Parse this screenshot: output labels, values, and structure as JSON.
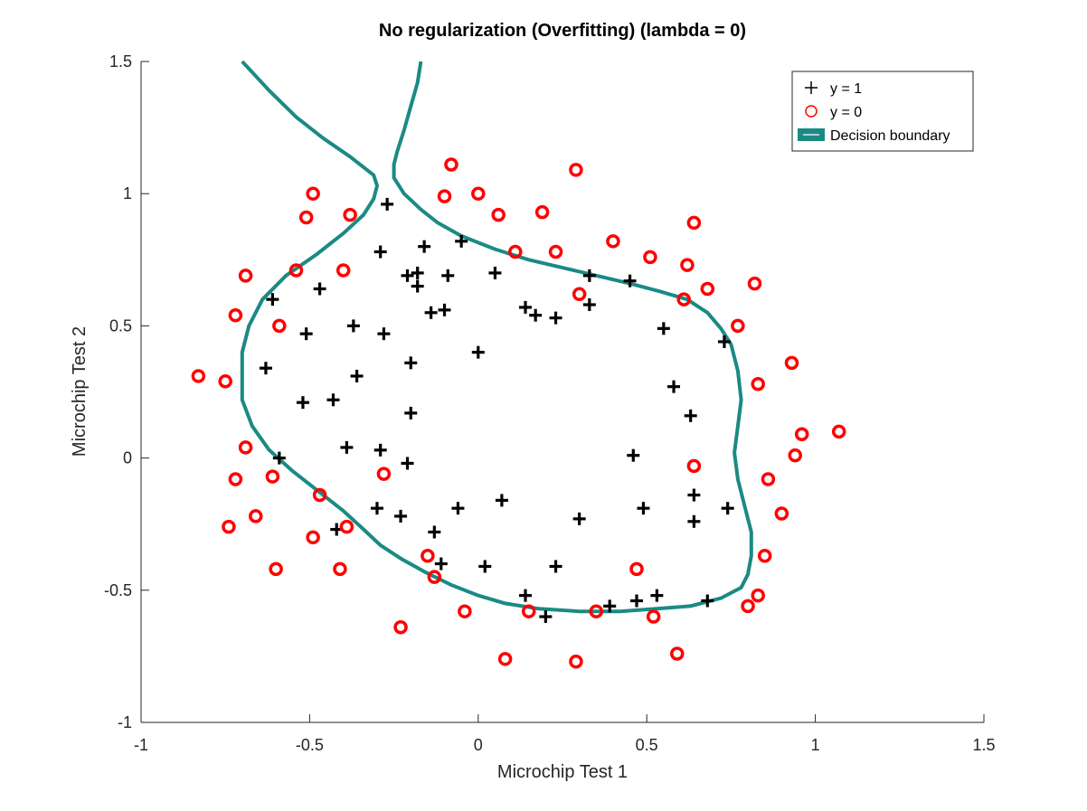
{
  "chart_data": {
    "type": "scatter",
    "title": "No regularization (Overfitting) (lambda = 0)",
    "xlabel": "Microchip Test 1",
    "ylabel": "Microchip Test 2",
    "xlim": [
      -1,
      1.5
    ],
    "ylim": [
      -1,
      1.5
    ],
    "xticks": [
      "-1",
      "-0.5",
      "0",
      "0.5",
      "1",
      "1.5"
    ],
    "yticks": [
      "-1",
      "-0.5",
      "0",
      "0.5",
      "1",
      "1.5"
    ],
    "grid": false,
    "legend_position": "top-right",
    "legend": [
      "y = 1",
      "y = 0",
      "Decision boundary"
    ],
    "colors": {
      "positive": "#000000",
      "negative": "#ff0000",
      "boundary": "#1b8a84"
    },
    "series": [
      {
        "name": "y = 1",
        "marker": "plus",
        "points": [
          [
            -0.27,
            0.96
          ],
          [
            -0.29,
            0.78
          ],
          [
            -0.05,
            0.82
          ],
          [
            -0.16,
            0.8
          ],
          [
            -0.21,
            0.69
          ],
          [
            -0.18,
            0.7
          ],
          [
            -0.18,
            0.65
          ],
          [
            -0.09,
            0.69
          ],
          [
            0.05,
            0.7
          ],
          [
            -0.14,
            0.55
          ],
          [
            -0.1,
            0.56
          ],
          [
            -0.61,
            0.6
          ],
          [
            -0.47,
            0.64
          ],
          [
            -0.51,
            0.47
          ],
          [
            -0.37,
            0.5
          ],
          [
            -0.28,
            0.47
          ],
          [
            0.14,
            0.57
          ],
          [
            0.17,
            0.54
          ],
          [
            0.23,
            0.53
          ],
          [
            0.33,
            0.58
          ],
          [
            0.33,
            0.69
          ],
          [
            0.45,
            0.67
          ],
          [
            -0.63,
            0.34
          ],
          [
            -0.36,
            0.31
          ],
          [
            -0.2,
            0.36
          ],
          [
            0.0,
            0.4
          ],
          [
            0.55,
            0.49
          ],
          [
            0.73,
            0.44
          ],
          [
            -0.52,
            0.21
          ],
          [
            -0.43,
            0.22
          ],
          [
            -0.2,
            0.17
          ],
          [
            0.58,
            0.27
          ],
          [
            0.63,
            0.16
          ],
          [
            -0.59,
            0.0
          ],
          [
            -0.39,
            0.04
          ],
          [
            -0.29,
            0.03
          ],
          [
            -0.21,
            -0.02
          ],
          [
            0.46,
            0.01
          ],
          [
            -0.3,
            -0.19
          ],
          [
            -0.23,
            -0.22
          ],
          [
            -0.06,
            -0.19
          ],
          [
            0.07,
            -0.16
          ],
          [
            0.3,
            -0.23
          ],
          [
            0.49,
            -0.19
          ],
          [
            0.64,
            -0.14
          ],
          [
            0.64,
            -0.24
          ],
          [
            0.74,
            -0.19
          ],
          [
            -0.42,
            -0.27
          ],
          [
            -0.13,
            -0.28
          ],
          [
            -0.11,
            -0.4
          ],
          [
            0.02,
            -0.41
          ],
          [
            0.23,
            -0.41
          ],
          [
            0.14,
            -0.52
          ],
          [
            0.2,
            -0.6
          ],
          [
            0.39,
            -0.56
          ],
          [
            0.47,
            -0.54
          ],
          [
            0.53,
            -0.52
          ],
          [
            0.68,
            -0.54
          ]
        ]
      },
      {
        "name": "y = 0",
        "marker": "circle",
        "points": [
          [
            -0.49,
            1.0
          ],
          [
            -0.51,
            0.91
          ],
          [
            -0.38,
            0.92
          ],
          [
            -0.08,
            1.11
          ],
          [
            -0.1,
            0.99
          ],
          [
            0.0,
            1.0
          ],
          [
            0.06,
            0.92
          ],
          [
            0.19,
            0.93
          ],
          [
            0.29,
            1.09
          ],
          [
            0.11,
            0.78
          ],
          [
            0.23,
            0.78
          ],
          [
            0.4,
            0.82
          ],
          [
            0.51,
            0.76
          ],
          [
            0.62,
            0.73
          ],
          [
            0.64,
            0.89
          ],
          [
            0.68,
            0.64
          ],
          [
            0.82,
            0.66
          ],
          [
            0.61,
            0.6
          ],
          [
            0.3,
            0.62
          ],
          [
            0.77,
            0.5
          ],
          [
            -0.69,
            0.69
          ],
          [
            -0.54,
            0.71
          ],
          [
            -0.4,
            0.71
          ],
          [
            -0.72,
            0.54
          ],
          [
            -0.59,
            0.5
          ],
          [
            -0.83,
            0.31
          ],
          [
            -0.75,
            0.29
          ],
          [
            0.93,
            0.36
          ],
          [
            0.83,
            0.28
          ],
          [
            -0.69,
            0.04
          ],
          [
            -0.72,
            -0.08
          ],
          [
            -0.61,
            -0.07
          ],
          [
            -0.28,
            -0.06
          ],
          [
            -0.47,
            -0.14
          ],
          [
            0.64,
            -0.03
          ],
          [
            0.86,
            -0.08
          ],
          [
            0.94,
            0.01
          ],
          [
            0.96,
            0.09
          ],
          [
            1.07,
            0.1
          ],
          [
            0.9,
            -0.21
          ],
          [
            -0.74,
            -0.26
          ],
          [
            -0.66,
            -0.22
          ],
          [
            -0.49,
            -0.3
          ],
          [
            -0.39,
            -0.26
          ],
          [
            -0.6,
            -0.42
          ],
          [
            -0.41,
            -0.42
          ],
          [
            -0.15,
            -0.37
          ],
          [
            -0.13,
            -0.45
          ],
          [
            0.85,
            -0.37
          ],
          [
            0.47,
            -0.42
          ],
          [
            -0.23,
            -0.64
          ],
          [
            -0.04,
            -0.58
          ],
          [
            0.08,
            -0.76
          ],
          [
            0.15,
            -0.58
          ],
          [
            0.29,
            -0.77
          ],
          [
            0.35,
            -0.58
          ],
          [
            0.52,
            -0.6
          ],
          [
            0.59,
            -0.74
          ],
          [
            0.8,
            -0.56
          ],
          [
            0.83,
            -0.52
          ]
        ]
      },
      {
        "name": "Decision boundary",
        "type": "line",
        "segments": [
          [
            [
              -0.7,
              1.5
            ],
            [
              -0.62,
              1.39
            ],
            [
              -0.54,
              1.29
            ],
            [
              -0.46,
              1.21
            ],
            [
              -0.38,
              1.14
            ],
            [
              -0.33,
              1.09
            ],
            [
              -0.31,
              1.07
            ],
            [
              -0.3,
              1.03
            ],
            [
              -0.31,
              0.98
            ],
            [
              -0.34,
              0.92
            ],
            [
              -0.4,
              0.85
            ],
            [
              -0.48,
              0.77
            ],
            [
              -0.57,
              0.69
            ],
            [
              -0.64,
              0.6
            ],
            [
              -0.68,
              0.5
            ],
            [
              -0.7,
              0.4
            ],
            [
              -0.7,
              0.3
            ],
            [
              -0.7,
              0.22
            ],
            [
              -0.67,
              0.12
            ],
            [
              -0.62,
              0.03
            ],
            [
              -0.55,
              -0.05
            ],
            [
              -0.47,
              -0.13
            ],
            [
              -0.4,
              -0.2
            ],
            [
              -0.34,
              -0.27
            ],
            [
              -0.29,
              -0.33
            ],
            [
              -0.23,
              -0.38
            ],
            [
              -0.16,
              -0.43
            ],
            [
              -0.08,
              -0.48
            ],
            [
              0.0,
              -0.52
            ],
            [
              0.08,
              -0.55
            ],
            [
              0.18,
              -0.57
            ],
            [
              0.3,
              -0.58
            ],
            [
              0.42,
              -0.58
            ],
            [
              0.53,
              -0.57
            ],
            [
              0.63,
              -0.56
            ],
            [
              0.72,
              -0.53
            ],
            [
              0.78,
              -0.49
            ],
            [
              0.8,
              -0.44
            ],
            [
              0.81,
              -0.37
            ],
            [
              0.81,
              -0.28
            ],
            [
              0.79,
              -0.18
            ],
            [
              0.77,
              -0.08
            ],
            [
              0.76,
              0.02
            ],
            [
              0.77,
              0.12
            ],
            [
              0.78,
              0.22
            ],
            [
              0.77,
              0.33
            ],
            [
              0.75,
              0.43
            ],
            [
              0.72,
              0.49
            ],
            [
              0.68,
              0.55
            ],
            [
              0.62,
              0.6
            ],
            [
              0.54,
              0.63
            ],
            [
              0.45,
              0.66
            ],
            [
              0.35,
              0.69
            ],
            [
              0.25,
              0.72
            ],
            [
              0.15,
              0.75
            ],
            [
              0.05,
              0.79
            ],
            [
              -0.05,
              0.84
            ],
            [
              -0.12,
              0.89
            ],
            [
              -0.17,
              0.94
            ],
            [
              -0.22,
              1.0
            ],
            [
              -0.25,
              1.06
            ],
            [
              -0.25,
              1.11
            ],
            [
              -0.24,
              1.16
            ],
            [
              -0.22,
              1.24
            ],
            [
              -0.2,
              1.33
            ],
            [
              -0.18,
              1.42
            ],
            [
              -0.17,
              1.5
            ]
          ]
        ]
      }
    ]
  }
}
